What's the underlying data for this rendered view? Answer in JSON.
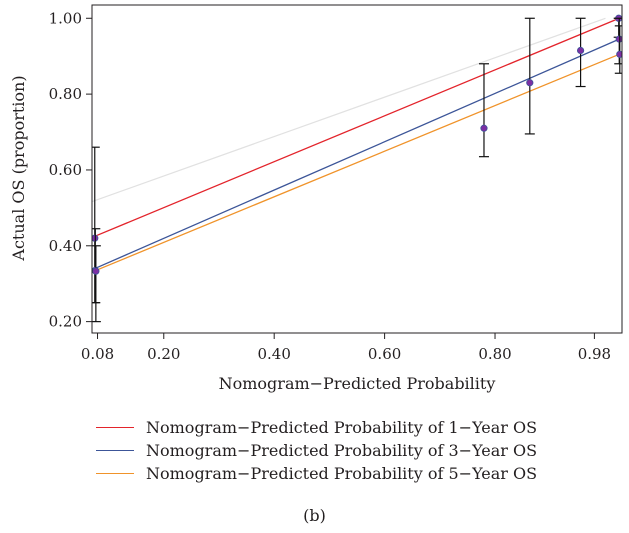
{
  "chart_data": {
    "type": "line",
    "title": "",
    "xlabel": "Nomogram−Predicted Probability",
    "ylabel": "Actual OS (proportion)",
    "xlim": [
      0.07,
      1.03
    ],
    "ylim": [
      0.17,
      1.035
    ],
    "x_ticks": [
      {
        "v": 0.08,
        "label": "0.08"
      },
      {
        "v": 0.2,
        "label": "0.20"
      },
      {
        "v": 0.4,
        "label": "0.40"
      },
      {
        "v": 0.6,
        "label": "0.60"
      },
      {
        "v": 0.8,
        "label": "0.80"
      },
      {
        "v": 0.98,
        "label": "0.98"
      }
    ],
    "y_ticks": [
      {
        "v": 0.2,
        "label": "0.20"
      },
      {
        "v": 0.4,
        "label": "0.40"
      },
      {
        "v": 0.6,
        "label": "0.60"
      },
      {
        "v": 0.8,
        "label": "0.80"
      },
      {
        "v": 1.0,
        "label": "1.00"
      }
    ],
    "reference_line": {
      "x": [
        0.0,
        1.0
      ],
      "y": [
        0.48,
        1.0
      ],
      "color": "#e1e1e1"
    },
    "series": [
      {
        "name": "Nomogram−Predicted Probability of 1−Year OS",
        "color": "#e3242b",
        "x": [
          0.075,
          1.025
        ],
        "y": [
          0.425,
          1.0
        ]
      },
      {
        "name": "Nomogram−Predicted Probability of 3−Year OS",
        "color": "#3c5598",
        "x": [
          0.075,
          1.025
        ],
        "y": [
          0.34,
          0.945
        ]
      },
      {
        "name": "Nomogram−Predicted Probability of 5−Year OS",
        "color": "#f0932a",
        "x": [
          0.077,
          1.025
        ],
        "y": [
          0.335,
          0.905
        ]
      }
    ],
    "points": [
      {
        "x": 0.075,
        "y": 0.42,
        "lo": 0.25,
        "hi": 0.66
      },
      {
        "x": 0.076,
        "y": 0.335,
        "lo": 0.25,
        "hi": 0.445
      },
      {
        "x": 0.077,
        "y": 0.333,
        "lo": 0.2,
        "hi": 0.4
      },
      {
        "x": 0.78,
        "y": 0.71,
        "lo": 0.635,
        "hi": 0.88
      },
      {
        "x": 0.863,
        "y": 0.83,
        "lo": 0.695,
        "hi": 1.0
      },
      {
        "x": 0.955,
        "y": 0.915,
        "lo": 0.82,
        "hi": 1.0
      },
      {
        "x": 1.024,
        "y": 1.0,
        "lo": 0.95,
        "hi": 1.0
      },
      {
        "x": 1.025,
        "y": 0.945,
        "lo": 0.88,
        "hi": 1.0
      },
      {
        "x": 1.026,
        "y": 0.905,
        "lo": 0.855,
        "hi": 0.98
      }
    ],
    "grid": false,
    "legend_position": "bottom-left"
  },
  "panel_label": "(b)"
}
